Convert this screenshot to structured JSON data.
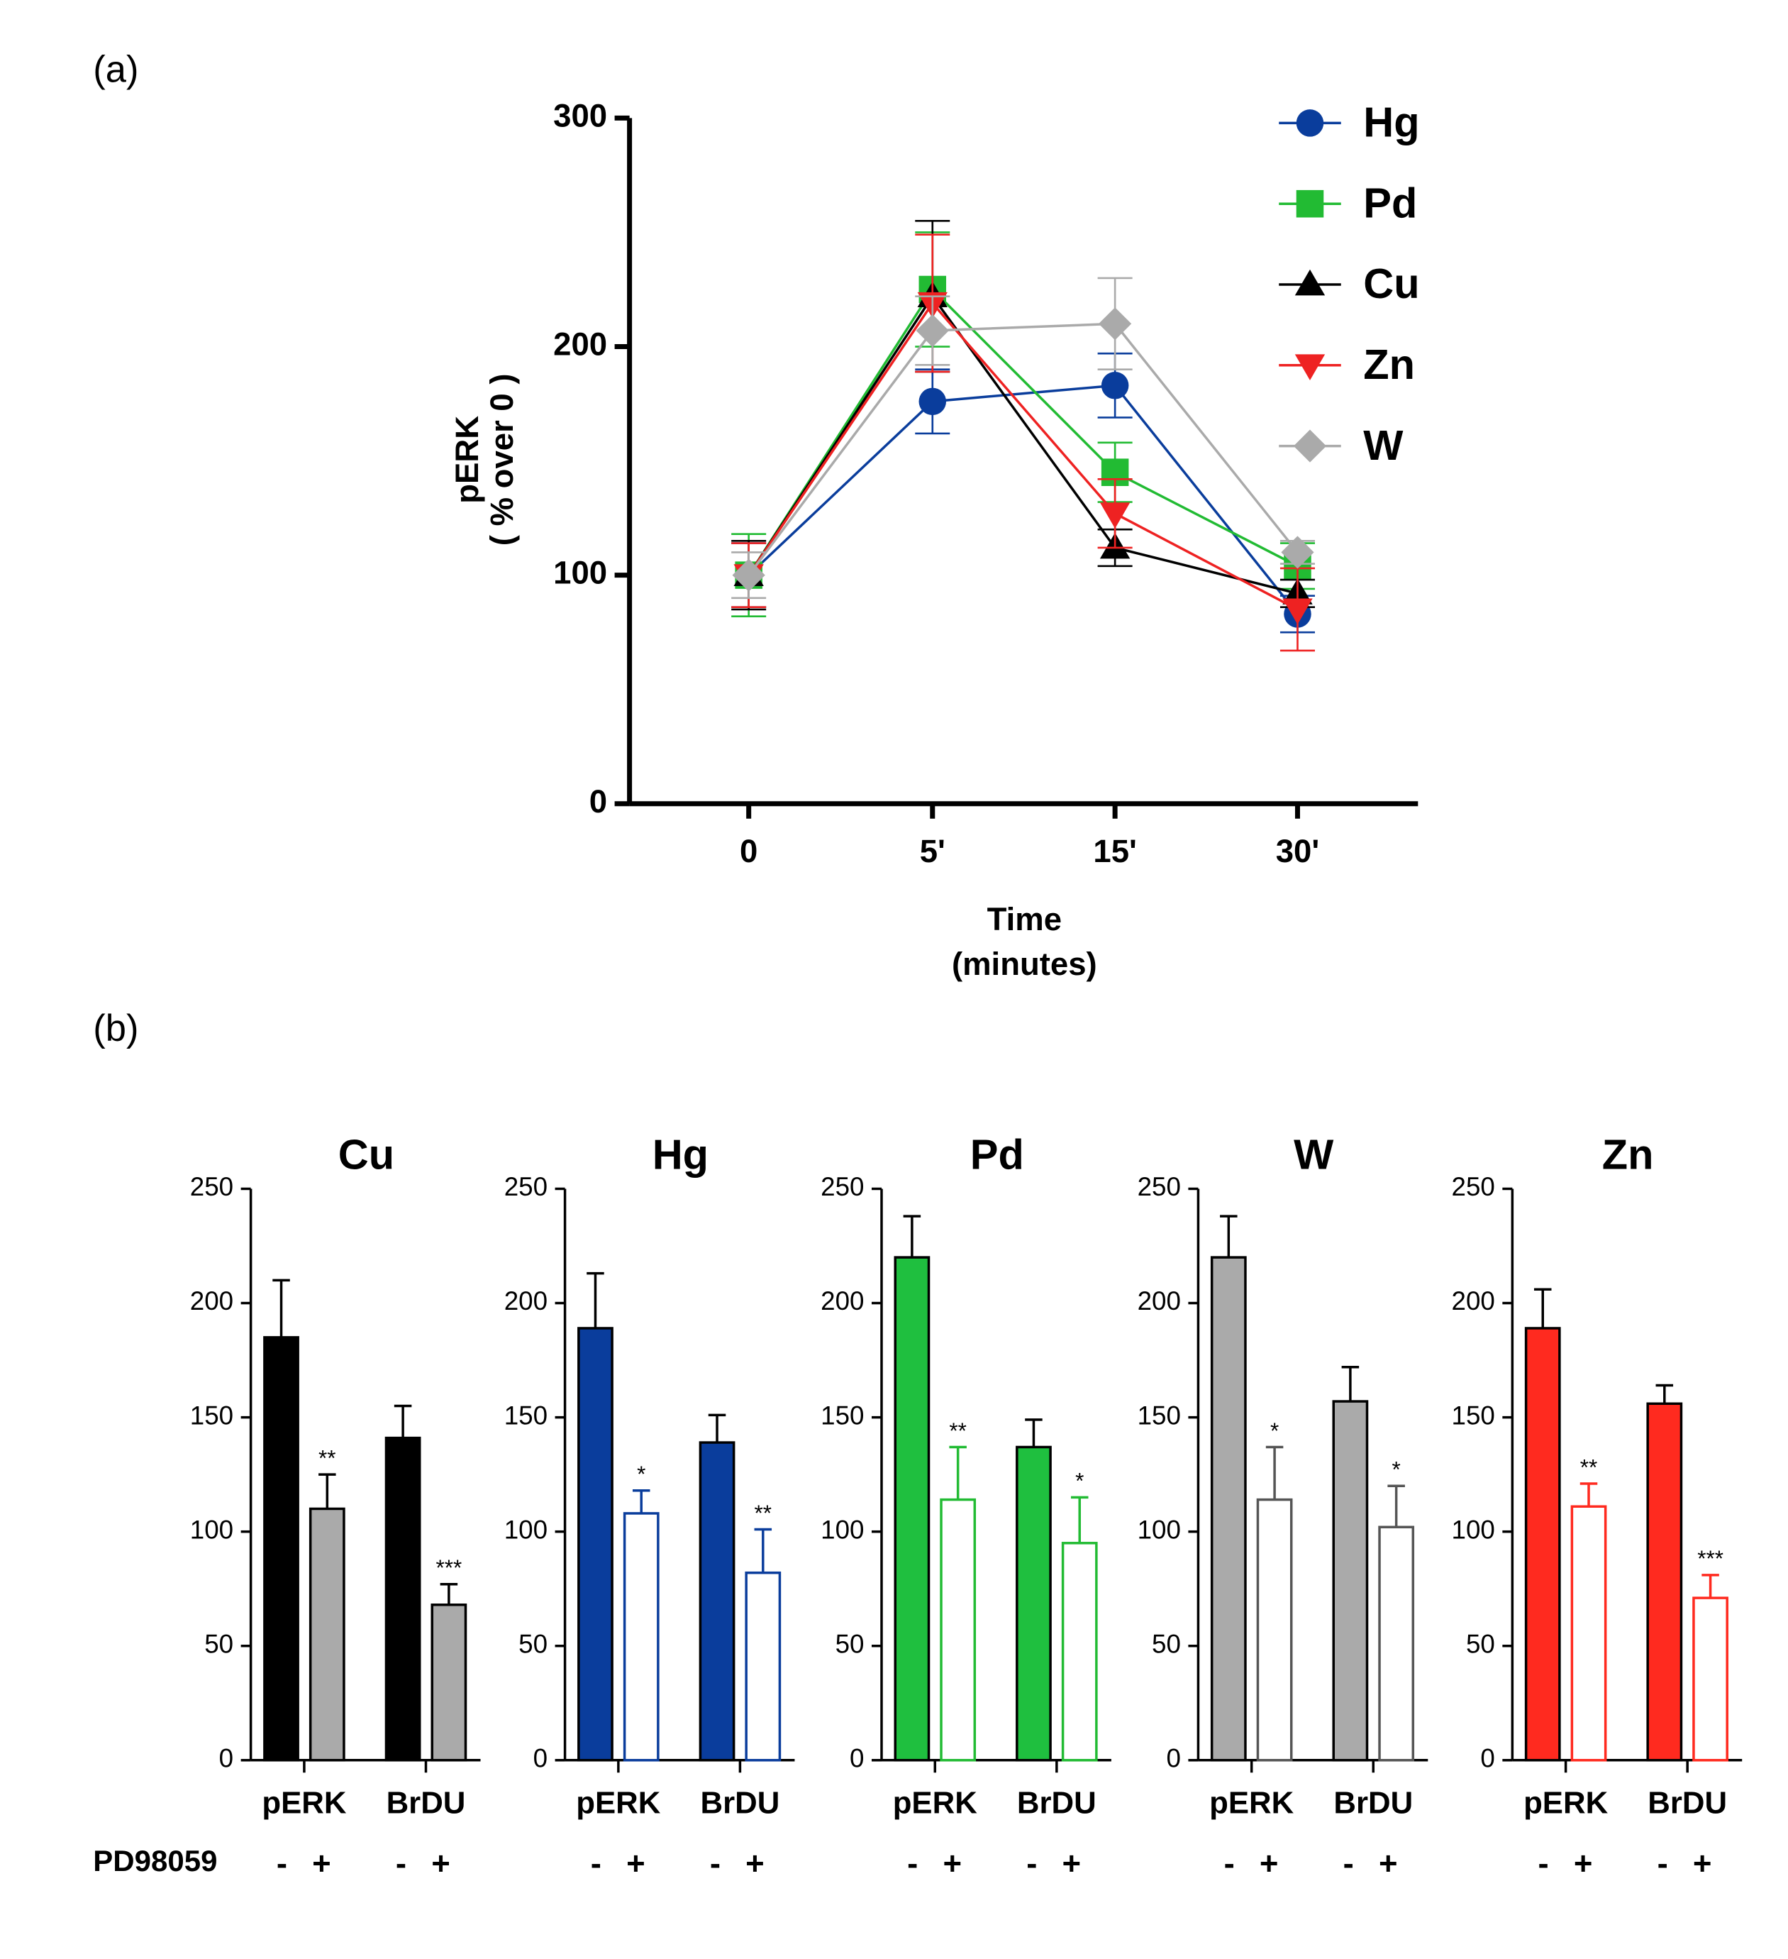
{
  "panels": [
    "(a)",
    "(b)"
  ],
  "treatment_label": "PD98059",
  "chart_data": [
    {
      "type": "line",
      "categories": [
        "0",
        "5'",
        "15'",
        "30'"
      ],
      "ylabel": [
        "pERK",
        "( % over 0 )"
      ],
      "xlabel": [
        "Time",
        "(minutes)"
      ],
      "ylim": [
        0,
        300
      ],
      "yticks": [
        0,
        100,
        200,
        300
      ],
      "series": [
        {
          "name": "Hg",
          "color": "#0a3d9c",
          "marker": "circle",
          "values": [
            100,
            176,
            183,
            83
          ],
          "errors": [
            14,
            14,
            14,
            8
          ]
        },
        {
          "name": "Pd",
          "color": "#22bb33",
          "marker": "square",
          "values": [
            100,
            225,
            145,
            104
          ],
          "errors": [
            18,
            25,
            13,
            10
          ]
        },
        {
          "name": "Cu",
          "color": "#000000",
          "marker": "triangle-up",
          "values": [
            100,
            222,
            112,
            92
          ],
          "errors": [
            15,
            33,
            8,
            6
          ]
        },
        {
          "name": "Zn",
          "color": "#ee2222",
          "marker": "triangle-down",
          "values": [
            100,
            219,
            127,
            85
          ],
          "errors": [
            14,
            30,
            15,
            18
          ]
        },
        {
          "name": "W",
          "color": "#aaaaaa",
          "marker": "diamond",
          "values": [
            100,
            207,
            210,
            110
          ],
          "errors": [
            10,
            15,
            20,
            5
          ]
        }
      ]
    },
    {
      "type": "bar",
      "title": "Cu",
      "title_color": "#000000",
      "categories": [
        "pERK",
        "BrDU"
      ],
      "ylim": [
        0,
        250
      ],
      "yticks": [
        0,
        50,
        100,
        150,
        200,
        250
      ],
      "series": [
        {
          "name": "-",
          "fill": "#000000",
          "color": "#000000",
          "values": [
            185,
            141
          ],
          "errors": [
            25,
            14
          ]
        },
        {
          "name": "+",
          "fill": "#aaaaaa",
          "color": "#000000",
          "values": [
            110,
            68
          ],
          "errors": [
            15,
            9
          ],
          "stars": [
            "**",
            "***"
          ]
        }
      ]
    },
    {
      "type": "bar",
      "title": "Hg",
      "title_color": "#0a3d9c",
      "categories": [
        "pERK",
        "BrDU"
      ],
      "ylim": [
        0,
        250
      ],
      "yticks": [
        0,
        50,
        100,
        150,
        200,
        250
      ],
      "series": [
        {
          "name": "-",
          "fill": "#0a3d9c",
          "color": "#000000",
          "values": [
            189,
            139
          ],
          "errors": [
            24,
            12
          ]
        },
        {
          "name": "+",
          "fill": "#ffffff",
          "color": "#0a3d9c",
          "values": [
            108,
            82
          ],
          "errors": [
            10,
            19
          ],
          "stars": [
            "*",
            "**"
          ]
        }
      ]
    },
    {
      "type": "bar",
      "title": "Pd",
      "title_color": "#22bb33",
      "categories": [
        "pERK",
        "BrDU"
      ],
      "ylim": [
        0,
        250
      ],
      "yticks": [
        0,
        50,
        100,
        150,
        200,
        250
      ],
      "series": [
        {
          "name": "-",
          "fill": "#1fbf3f",
          "color": "#000000",
          "values": [
            220,
            137
          ],
          "errors": [
            18,
            12
          ]
        },
        {
          "name": "+",
          "fill": "#ffffff",
          "color": "#22bb33",
          "values": [
            114,
            95
          ],
          "errors": [
            23,
            20
          ],
          "stars": [
            "**",
            "*"
          ]
        }
      ]
    },
    {
      "type": "bar",
      "title": "W",
      "title_color": "#aaaaaa",
      "categories": [
        "pERK",
        "BrDU"
      ],
      "ylim": [
        0,
        250
      ],
      "yticks": [
        0,
        50,
        100,
        150,
        200,
        250
      ],
      "series": [
        {
          "name": "-",
          "fill": "#aaaaaa",
          "color": "#000000",
          "values": [
            220,
            157
          ],
          "errors": [
            18,
            15
          ]
        },
        {
          "name": "+",
          "fill": "#ffffff",
          "color": "#555555",
          "values": [
            114,
            102
          ],
          "errors": [
            23,
            18
          ],
          "stars": [
            "*",
            "*"
          ]
        }
      ]
    },
    {
      "type": "bar",
      "title": "Zn",
      "title_color": "#ff2a1f",
      "categories": [
        "pERK",
        "BrDU"
      ],
      "ylim": [
        0,
        250
      ],
      "yticks": [
        0,
        50,
        100,
        150,
        200,
        250
      ],
      "series": [
        {
          "name": "-",
          "fill": "#ff2a1f",
          "color": "#000000",
          "values": [
            189,
            156
          ],
          "errors": [
            17,
            8
          ]
        },
        {
          "name": "+",
          "fill": "#ffffff",
          "color": "#ff2a1f",
          "values": [
            111,
            71
          ],
          "errors": [
            10,
            10
          ],
          "stars": [
            "**",
            "***"
          ]
        }
      ]
    }
  ]
}
